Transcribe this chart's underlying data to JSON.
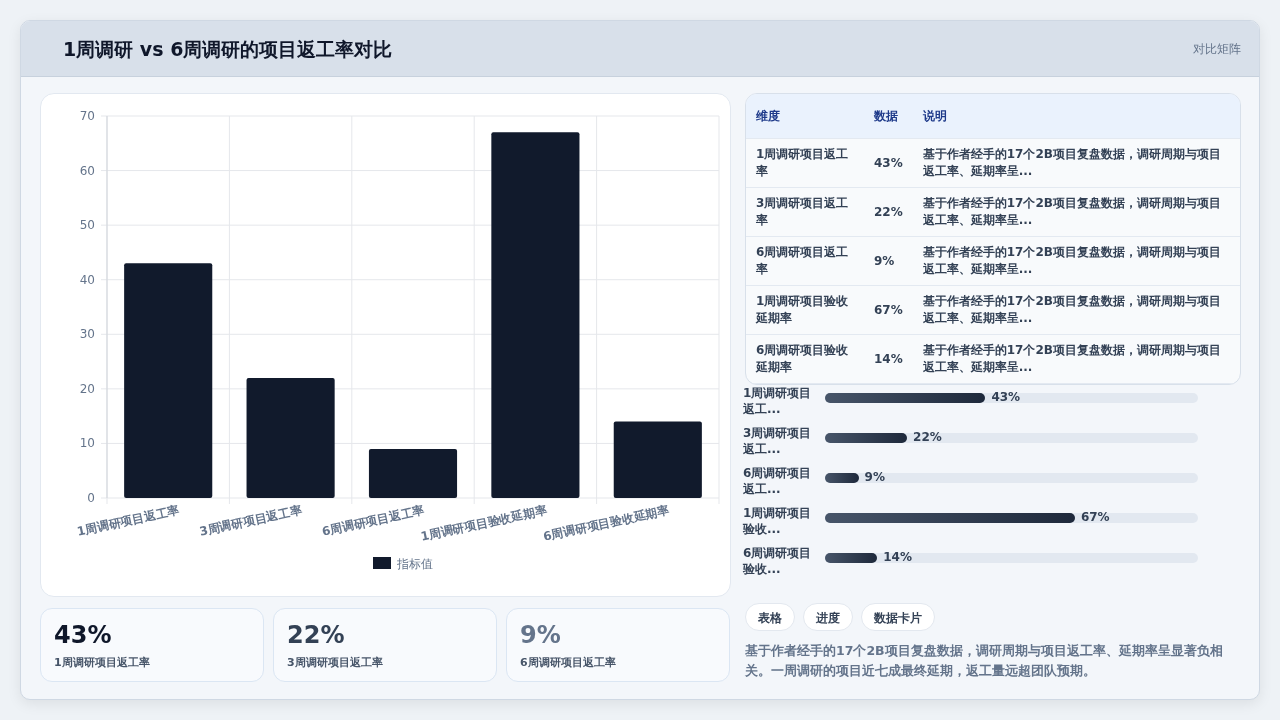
{
  "chart_data": [
    {
      "type": "bar",
      "title": "1周调研 vs 6周调研的项目返工率对比",
      "categories": [
        "1周调研项目返工率",
        "3周调研项目返工率",
        "6周调研项目返工率",
        "1周调研项目验收延期率",
        "6周调研项目验收延期率"
      ],
      "series": [
        {
          "name": "指标值",
          "color": "#111a2c",
          "values": [
            43,
            22,
            9,
            67,
            14
          ]
        }
      ],
      "ylim": [
        0,
        70
      ],
      "yticks": [
        0,
        10,
        20,
        30,
        40,
        50,
        60,
        70
      ],
      "grid": true,
      "legend": "bottom"
    },
    {
      "type": "other",
      "categories": [
        "1周调研项目返工率",
        "3周调研项目返工率",
        "6周调研项目返工率",
        "1周调研项目验收延期率",
        "6周调研项目验收延期率"
      ],
      "value_labels": [
        "43%",
        "22%",
        "9%",
        "67%",
        "14%"
      ],
      "annotations": [
        "维度",
        "数据",
        "说明",
        "基于作者经手的17个2B项目复盘数据，调研周期与项目返工率、延期率呈...",
        "基于作者经手的17个2B项目复盘数据，调研周期与项目返工率、延期率呈...",
        "基于作者经手的17个2B项目复盘数据，调研周期与项目返工率、延期率呈...",
        "基于作者经手的17个2B项目复盘数据，调研周期与项目返工率、延期率呈...",
        "基于作者经手的17个2B项目复盘数据，调研周期与项目返工率、延期率呈..."
      ]
    },
    {
      "type": "bar",
      "orientation": "horizontal",
      "categories": [
        "1周调研项目返工...",
        "3周调研项目返工...",
        "6周调研项目返工...",
        "1周调研项目验收...",
        "6周调研项目验收..."
      ],
      "values": [
        43,
        22,
        9,
        67,
        14
      ],
      "value_labels": [
        "43%",
        "22%",
        "9%",
        "67%",
        "14%"
      ],
      "color": "#1e293b"
    },
    {
      "type": "other",
      "categories": [
        "1周调研项目返工率",
        "3周调研项目返工率",
        "6周调研项目返工率"
      ],
      "value_labels": [
        "43%",
        "22%",
        "9%"
      ]
    },
    {
      "type": "other",
      "annotations": [
        "对比矩阵",
        "表格",
        "进度",
        "数据卡片",
        "基于作者经手的17个2B项目复盘数据，调研周期与项目返工率、延期率呈显著负相关。一周调研的项目近七成最终延期，返工量远超团队预期。"
      ]
    }
  ]
}
